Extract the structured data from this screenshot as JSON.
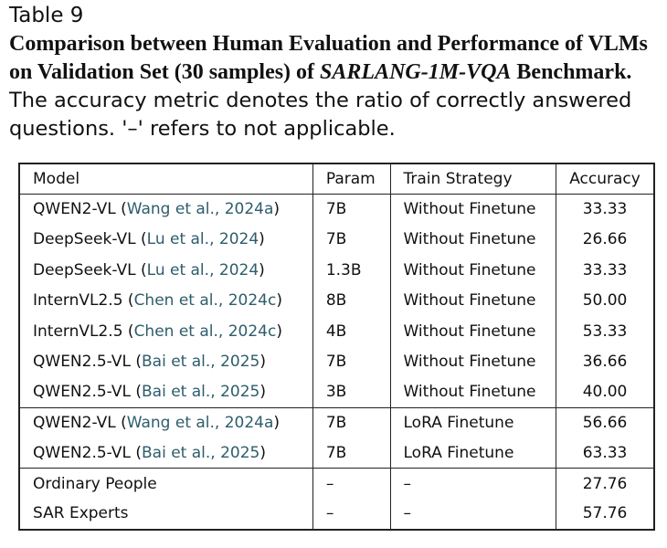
{
  "caption": {
    "label": "Table 9",
    "title_part1": "Comparison between Human Evaluation and Performance of VLMs on Validation Set (30 samples) of ",
    "title_benchmark": "SARLANG-1M-VQA",
    "title_part2": " Benchmark.",
    "description": " The accuracy metric denotes the ratio of correctly answered questions. '–' refers to not applicable."
  },
  "table": {
    "headers": [
      "Model",
      "Param",
      "Train Strategy",
      "Accuracy"
    ],
    "groups": [
      [
        {
          "model": "QWEN2-VL",
          "cite": "Wang et al., 2024a",
          "param": "7B",
          "strategy": "Without Finetune",
          "accuracy": "33.33",
          "best": false
        },
        {
          "model": "DeepSeek-VL",
          "cite": "Lu et al., 2024",
          "param": "7B",
          "strategy": "Without Finetune",
          "accuracy": "26.66",
          "best": false
        },
        {
          "model": "DeepSeek-VL",
          "cite": "Lu et al., 2024",
          "param": "1.3B",
          "strategy": "Without Finetune",
          "accuracy": "33.33",
          "best": false
        },
        {
          "model": "InternVL2.5",
          "cite": "Chen et al., 2024c",
          "param": "8B",
          "strategy": "Without Finetune",
          "accuracy": "50.00",
          "best": false
        },
        {
          "model": "InternVL2.5",
          "cite": "Chen et al., 2024c",
          "param": "4B",
          "strategy": "Without Finetune",
          "accuracy": "53.33",
          "best": true
        },
        {
          "model": "QWEN2.5-VL",
          "cite": "Bai et al., 2025",
          "param": "7B",
          "strategy": "Without Finetune",
          "accuracy": "36.66",
          "best": false
        },
        {
          "model": "QWEN2.5-VL",
          "cite": "Bai et al., 2025",
          "param": "3B",
          "strategy": "Without Finetune",
          "accuracy": "40.00",
          "best": false
        }
      ],
      [
        {
          "model": "QWEN2-VL",
          "cite": "Wang et al., 2024a",
          "param": "7B",
          "strategy": "LoRA Finetune",
          "accuracy": "56.66",
          "best": false
        },
        {
          "model": "QWEN2.5-VL",
          "cite": "Bai et al., 2025",
          "param": "7B",
          "strategy": "LoRA Finetune",
          "accuracy": "63.33",
          "best": true
        }
      ],
      [
        {
          "model": "Ordinary People",
          "cite": "",
          "param": "–",
          "strategy": "–",
          "accuracy": "27.76",
          "best": false
        },
        {
          "model": "SAR Experts",
          "cite": "",
          "param": "–",
          "strategy": "–",
          "accuracy": "57.76",
          "best": true
        }
      ]
    ]
  }
}
